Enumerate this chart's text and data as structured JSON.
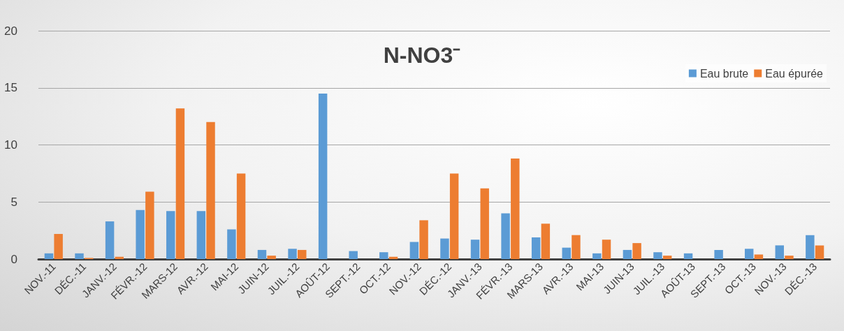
{
  "chart_data": {
    "type": "bar",
    "title": "N-NO3⁻",
    "categories": [
      "NOV.-11",
      "DÉC.-11",
      "JANV.-12",
      "FÉVR.-12",
      "MARS-12",
      "AVR.-12",
      "MAI-12",
      "JUIN-12",
      "JUIL.-12",
      "AOÛT-12",
      "SEPT.-12",
      "OCT.-12",
      "NOV.-12",
      "DÉC.-12",
      "JANV.-13",
      "FÉVR.-13",
      "MARS-13",
      "AVR.-13",
      "MAI-13",
      "JUIN-13",
      "JUIL.-13",
      "AOÛT-13",
      "SEPT.-13",
      "OCT.-13",
      "NOV.-13",
      "DÉC.-13"
    ],
    "series": [
      {
        "name": "Eau brute",
        "color": "#5b9bd5",
        "values": [
          0.5,
          0.5,
          3.3,
          4.3,
          4.2,
          4.2,
          2.6,
          0.8,
          0.9,
          14.5,
          0.7,
          0.6,
          1.5,
          1.8,
          1.7,
          4.0,
          1.9,
          1.0,
          0.5,
          0.8,
          0.6,
          0.5,
          0.8,
          0.9,
          1.2,
          2.1
        ]
      },
      {
        "name": "Eau épurée",
        "color": "#ed7d31",
        "values": [
          2.2,
          0.1,
          0.2,
          5.9,
          13.2,
          12.0,
          7.5,
          0.3,
          0.8,
          0,
          0,
          0.2,
          3.4,
          7.5,
          6.2,
          8.8,
          3.1,
          2.1,
          1.7,
          1.4,
          0.3,
          0,
          0,
          0.4,
          0.3,
          1.2
        ]
      }
    ],
    "ylim": [
      0,
      20
    ],
    "yticks": [
      0,
      5,
      10,
      15,
      20
    ],
    "grid": "y",
    "legend": "top right"
  }
}
